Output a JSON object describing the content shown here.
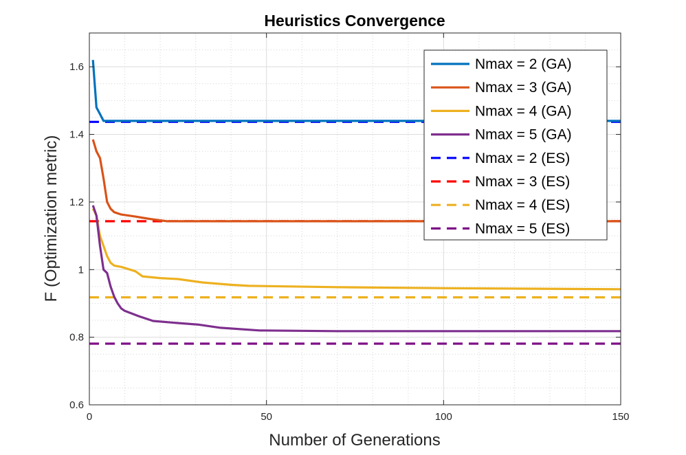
{
  "chart_data": {
    "type": "line",
    "title": "Heuristics Convergence",
    "xlabel": "Number of Generations",
    "ylabel": "F (Optimization metric)",
    "xlim": [
      0,
      150
    ],
    "ylim": [
      0.6,
      1.7
    ],
    "xticks": [
      0,
      50,
      100,
      150
    ],
    "yticks": [
      0.6,
      0.8,
      1.0,
      1.2,
      1.4,
      1.6
    ],
    "xtick_labels": [
      "0",
      "50",
      "100",
      "150"
    ],
    "ytick_labels": [
      "0.6",
      "0.8",
      "1",
      "1.2",
      "1.4",
      "1.6"
    ],
    "grid": true,
    "minor_grid": true,
    "legend_position": "top-right",
    "series": [
      {
        "name": "Nmax = 2 (GA)",
        "color": "#0072BD",
        "style": "solid",
        "x": [
          1,
          2,
          3,
          4,
          5,
          150
        ],
        "y": [
          1.62,
          1.48,
          1.46,
          1.44,
          1.44,
          1.44
        ]
      },
      {
        "name": "Nmax = 3 (GA)",
        "color": "#D95319",
        "style": "solid",
        "x": [
          1,
          2,
          3,
          4,
          5,
          6,
          7,
          9,
          13,
          17,
          22,
          150
        ],
        "y": [
          1.385,
          1.35,
          1.33,
          1.27,
          1.2,
          1.18,
          1.17,
          1.163,
          1.157,
          1.15,
          1.143,
          1.143
        ]
      },
      {
        "name": "Nmax = 4 (GA)",
        "color": "#EDB120",
        "style": "solid",
        "x": [
          1,
          2,
          3,
          4,
          5,
          6,
          7,
          9,
          13,
          15,
          20,
          25,
          32,
          40,
          45,
          70,
          100,
          150
        ],
        "y": [
          1.18,
          1.16,
          1.1,
          1.07,
          1.04,
          1.02,
          1.012,
          1.008,
          0.995,
          0.98,
          0.975,
          0.972,
          0.962,
          0.955,
          0.952,
          0.948,
          0.945,
          0.942
        ]
      },
      {
        "name": "Nmax = 5 (GA)",
        "color": "#7E2F8E",
        "style": "solid",
        "x": [
          1,
          2,
          3,
          4,
          5,
          6,
          7,
          8,
          9,
          10,
          14,
          18,
          25,
          31,
          37,
          48,
          70,
          150
        ],
        "y": [
          1.19,
          1.16,
          1.07,
          1.0,
          0.99,
          0.95,
          0.92,
          0.9,
          0.885,
          0.878,
          0.862,
          0.848,
          0.842,
          0.837,
          0.828,
          0.82,
          0.818,
          0.818
        ]
      },
      {
        "name": "Nmax = 2 (ES)",
        "color": "#0000FF",
        "style": "dashed",
        "x": [
          0,
          150
        ],
        "y": [
          1.437,
          1.437
        ]
      },
      {
        "name": "Nmax = 3 (ES)",
        "color": "#FF0000",
        "style": "dashed",
        "x": [
          0,
          150
        ],
        "y": [
          1.143,
          1.143
        ]
      },
      {
        "name": "Nmax = 4 (ES)",
        "color": "#EDB120",
        "style": "dashed",
        "x": [
          0,
          150
        ],
        "y": [
          0.918,
          0.918
        ]
      },
      {
        "name": "Nmax = 5 (ES)",
        "color": "#7E0F86",
        "style": "dashed",
        "x": [
          0,
          150
        ],
        "y": [
          0.781,
          0.781
        ]
      }
    ]
  }
}
